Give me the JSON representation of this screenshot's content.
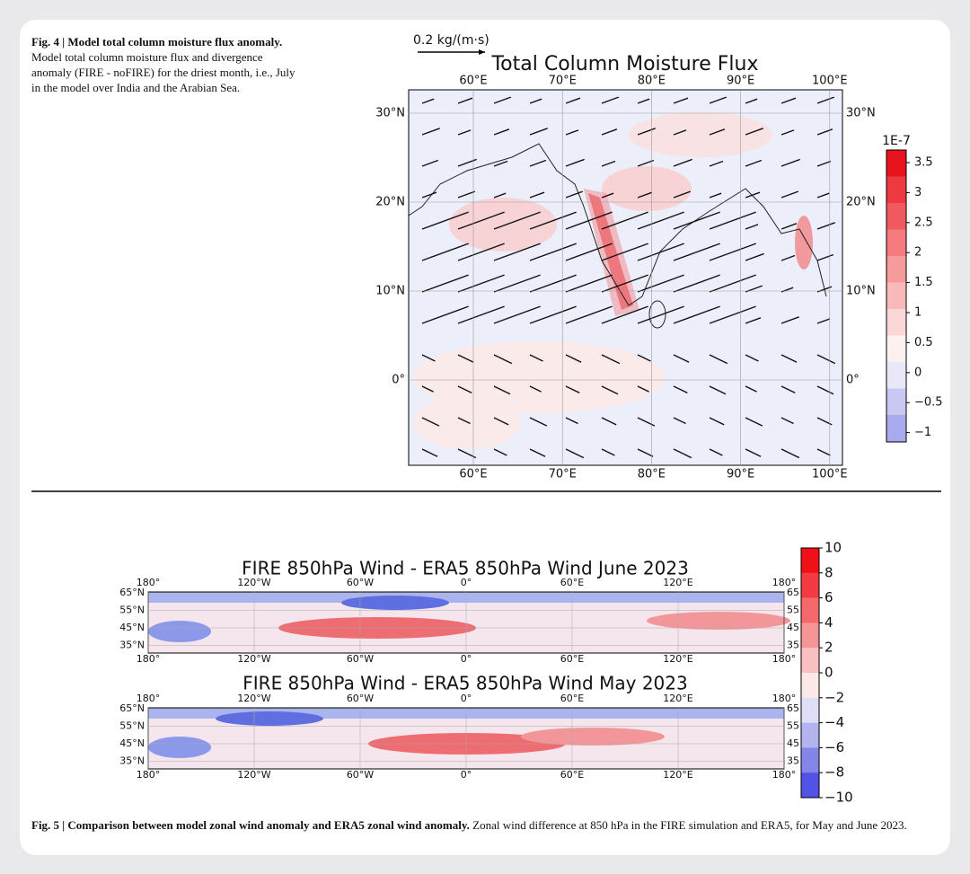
{
  "figure4": {
    "caption_label": "Fig. 4 | Model total column moisture flux anomaly.",
    "caption_text": "Model total column moisture flux and divergence anomaly (FIRE - noFIRE) for the driest month, i.e., July in the model over India and the Arabian Sea.",
    "title": "Total Column Moisture Flux",
    "scale_label": "0.2 kg/(m·s)",
    "lon_labels": [
      "60°E",
      "70°E",
      "80°E",
      "90°E",
      "100°E"
    ],
    "lat_labels": [
      "30°N",
      "20°N",
      "10°N",
      "0°"
    ],
    "colorbar_unit": "1E-7",
    "colorbar_labels": [
      "3.5",
      "3",
      "2.5",
      "2",
      "1.5",
      "1",
      "0.5",
      "0",
      "−0.5",
      "−1"
    ]
  },
  "figure5": {
    "panels": [
      {
        "title": "FIRE 850hPa Wind - ERA5 850hPa Wind June 2023",
        "lon_labels": [
          "180°",
          "120°W",
          "60°W",
          "0°",
          "60°E",
          "120°E",
          "180°"
        ],
        "lat_labels_left": [
          "65°N",
          "55°N",
          "45°N",
          "35°N"
        ],
        "lat_labels_right": [
          "65",
          "55",
          "45",
          "35"
        ]
      },
      {
        "title": "FIRE 850hPa Wind - ERA5 850hPa Wind May 2023",
        "lon_labels": [
          "180°",
          "120°W",
          "60°W",
          "0°",
          "60°E",
          "120°E",
          "180°"
        ],
        "lat_labels_left": [
          "65°N",
          "55°N",
          "45°N",
          "35°N"
        ],
        "lat_labels_right": [
          "65",
          "55",
          "45",
          "35"
        ]
      }
    ],
    "colorbar_labels": [
      "10",
      "8",
      "6",
      "4",
      "2",
      "0",
      "−2",
      "−4",
      "−6",
      "−8",
      "−10"
    ],
    "caption_label": "Fig. 5 | Comparison between model zonal wind anomaly and ERA5 zonal wind anomaly.",
    "caption_text": "Zonal wind difference at 850 hPa in the FIRE simulation and ERA5, for May and June 2023."
  }
}
